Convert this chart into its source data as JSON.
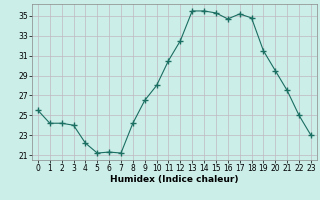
{
  "x": [
    0,
    1,
    2,
    3,
    4,
    5,
    6,
    7,
    8,
    9,
    10,
    11,
    12,
    13,
    14,
    15,
    16,
    17,
    18,
    19,
    20,
    21,
    22,
    23
  ],
  "y": [
    25.5,
    24.2,
    24.2,
    24.0,
    22.2,
    21.2,
    21.3,
    21.2,
    24.2,
    26.5,
    28.0,
    30.5,
    32.5,
    35.5,
    35.5,
    35.3,
    34.7,
    35.2,
    34.8,
    31.5,
    29.5,
    27.5,
    25.0,
    23.0
  ],
  "line_color": "#1a6e62",
  "marker": "+",
  "marker_size": 4,
  "bg_color": "#cceee8",
  "grid_color": "#c0b8c0",
  "xlabel": "Humidex (Indice chaleur)",
  "ylim": [
    20.5,
    36.2
  ],
  "yticks": [
    21,
    23,
    25,
    27,
    29,
    31,
    33,
    35
  ],
  "xlim": [
    -0.5,
    23.5
  ],
  "xticks": [
    0,
    1,
    2,
    3,
    4,
    5,
    6,
    7,
    8,
    9,
    10,
    11,
    12,
    13,
    14,
    15,
    16,
    17,
    18,
    19,
    20,
    21,
    22,
    23
  ]
}
